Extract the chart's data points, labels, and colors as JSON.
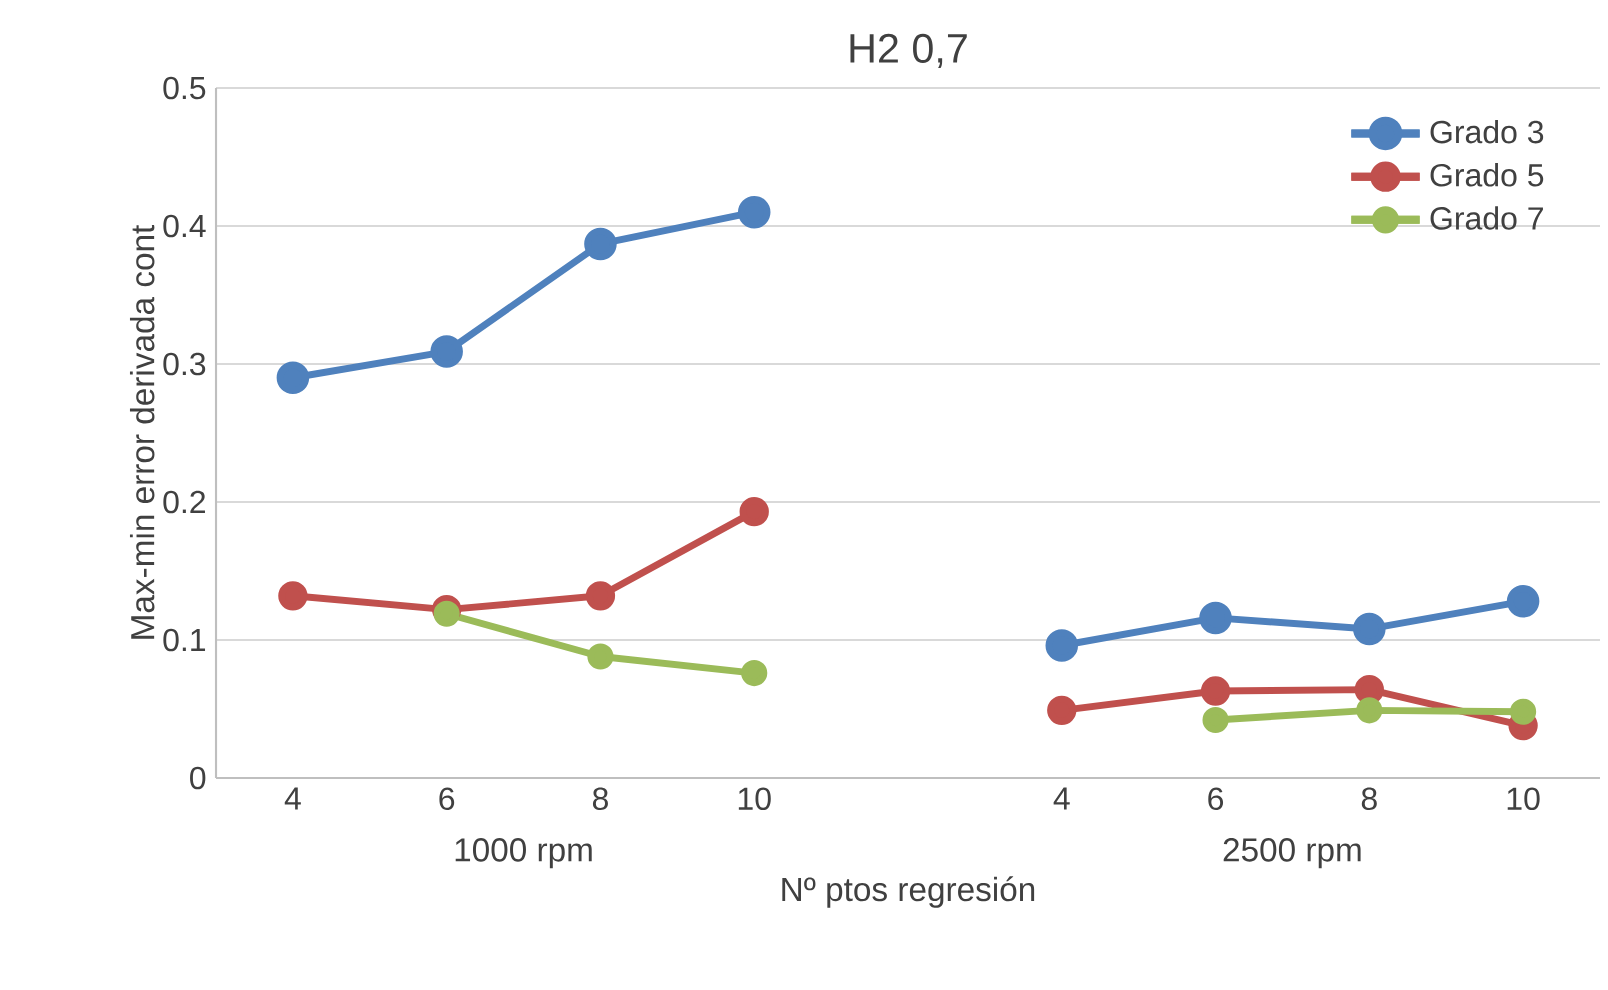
{
  "chart_data": {
    "type": "line",
    "title": "H2 0,7",
    "xlabel": "Nº ptos regresión",
    "ylabel": "Max-min error derivada cont",
    "categories": [
      "4",
      "6",
      "8",
      "10",
      null,
      "4",
      "6",
      "8",
      "10"
    ],
    "series": [
      {
        "name": "Grado 3",
        "color": "#4f81bd",
        "values": [
          0.29,
          0.309,
          0.387,
          0.41,
          null,
          0.096,
          0.116,
          0.108,
          0.128
        ]
      },
      {
        "name": "Grado 5",
        "color": "#c0504d",
        "values": [
          0.132,
          0.122,
          0.132,
          0.193,
          null,
          0.049,
          0.063,
          0.064,
          0.038
        ]
      },
      {
        "name": "Grado 7",
        "color": "#9bbb59",
        "values": [
          null,
          0.119,
          0.088,
          0.076,
          null,
          null,
          0.042,
          0.049,
          0.048
        ]
      }
    ],
    "annotations": [
      "1000 rpm",
      "2500 rpm"
    ],
    "ylim": [
      0,
      0.5
    ],
    "yticks": [
      0,
      0.1,
      0.2,
      0.3,
      0.4,
      0.5
    ],
    "grid": "y",
    "legend": "top right",
    "marker": "circle",
    "line_style": "solid"
  }
}
